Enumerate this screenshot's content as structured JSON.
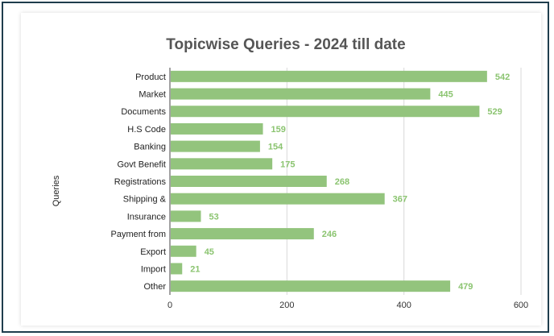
{
  "chart_data": {
    "type": "bar",
    "orientation": "horizontal",
    "title": "Topicwise Queries - 2024 till date",
    "xlabel": "",
    "ylabel": "Queries",
    "categories": [
      "Product",
      "Market",
      "Documents",
      "H.S Code",
      "Banking",
      "Govt Benefit",
      "Registrations",
      "Shipping &",
      "Insurance",
      "Payment from",
      "Export",
      "Import",
      "Other"
    ],
    "values": [
      542,
      445,
      529,
      159,
      154,
      175,
      268,
      367,
      53,
      246,
      45,
      21,
      479
    ],
    "xlim": [
      0,
      600
    ],
    "xticks": [
      "0",
      "200",
      "400",
      "600"
    ],
    "grid": "vertical",
    "legend": "none",
    "bar_color": "#93c47d",
    "label_color": "#8bc470"
  }
}
